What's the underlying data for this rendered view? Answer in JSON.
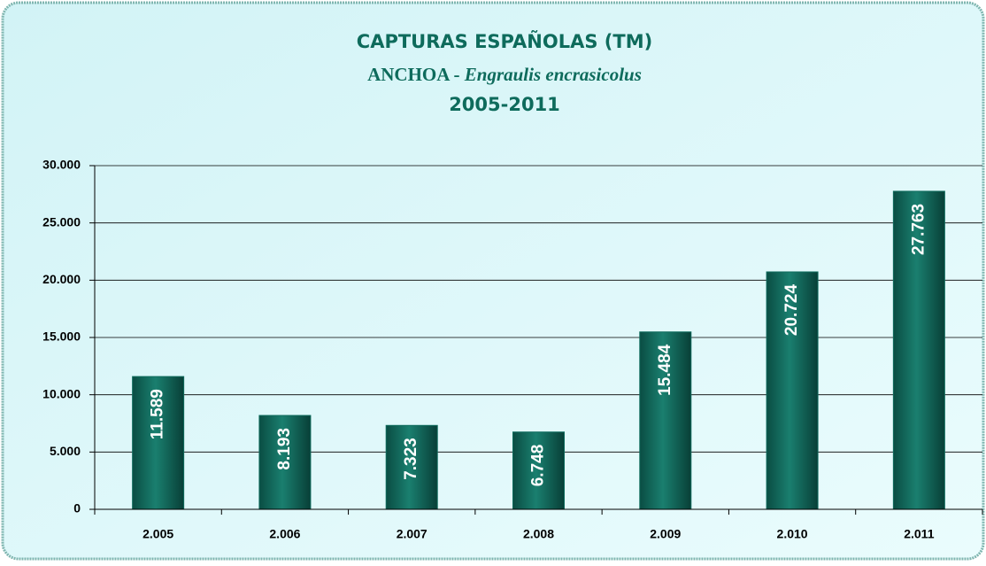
{
  "chart_data": {
    "type": "bar",
    "title": "CAPTURAS ESPAÑOLAS (TM)",
    "subtitle": "ANCHOA -",
    "subtitle_species": "Engraulis encrasicolus",
    "period": "2005-2011",
    "categories": [
      "2.005",
      "2.006",
      "2.007",
      "2.008",
      "2.009",
      "2.010",
      "2.011"
    ],
    "values": [
      11589,
      8193,
      7323,
      6748,
      15484,
      20724,
      27763
    ],
    "value_labels": [
      "11.589",
      "8.193",
      "7.323",
      "6.748",
      "15.484",
      "20.724",
      "27.763"
    ],
    "color": "#0e6b5c",
    "ylim": [
      0,
      30000
    ],
    "yticks": [
      0,
      {
        "value": 5000,
        "label": "5.000"
      },
      {
        "value": 10000,
        "label": "10.000"
      },
      {
        "value": 15000,
        "label": "15.000"
      },
      {
        "value": 20000,
        "label": "20.000"
      },
      {
        "value": 25000,
        "label": "25.000"
      },
      {
        "value": 30000,
        "label": "30.000"
      }
    ],
    "grid": true
  }
}
